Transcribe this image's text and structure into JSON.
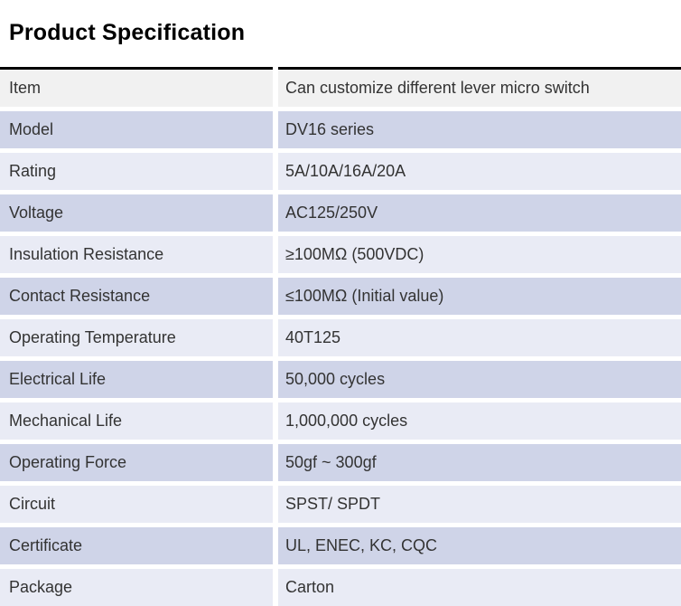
{
  "page_title": "Product Specification",
  "colors": {
    "rule": "#000000",
    "text": "#333333",
    "header_row_bg": "#f1f1f1",
    "accent_row_bg": "#cfd4e8",
    "light_row_bg": "#e9ebf5"
  },
  "table": {
    "rows": [
      {
        "label": "Item",
        "value": "Can customize different lever micro switch"
      },
      {
        "label": "Model",
        "value": "DV16 series"
      },
      {
        "label": "Rating",
        "value": "5A/10A/16A/20A"
      },
      {
        "label": "Voltage",
        "value": "AC125/250V"
      },
      {
        "label": "Insulation Resistance",
        "value": "≥100MΩ (500VDC)"
      },
      {
        "label": "Contact Resistance",
        "value": "≤100MΩ (Initial value)"
      },
      {
        "label": "Operating Temperature",
        "value": "40T125"
      },
      {
        "label": "Electrical Life",
        "value": "50,000 cycles"
      },
      {
        "label": "Mechanical Life",
        "value": "1,000,000 cycles"
      },
      {
        "label": "Operating Force",
        "value": "50gf ~ 300gf"
      },
      {
        "label": "Circuit",
        "value": "SPST/ SPDT"
      },
      {
        "label": "Certificate",
        "value": "UL, ENEC, KC, CQC"
      },
      {
        "label": "Package",
        "value": "Carton"
      }
    ]
  }
}
